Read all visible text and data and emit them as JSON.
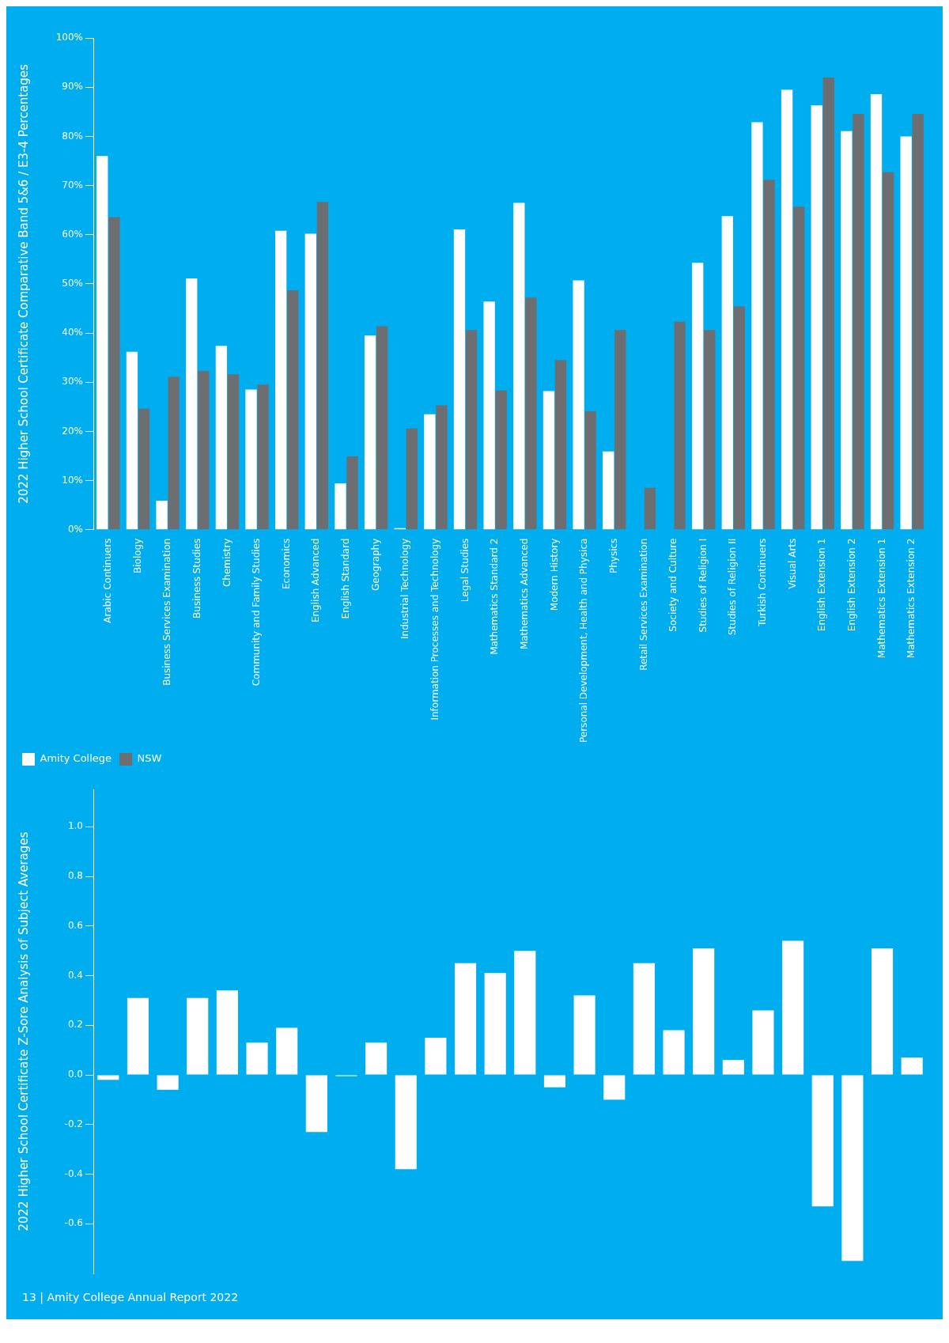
{
  "chart_data": [
    {
      "type": "bar",
      "ylabel": "2022 Higher School Certificate Comparative Band 5&6 / E3-4 Percentages",
      "categories": [
        "Arabic Continuers",
        "Biology",
        "Business Services Examination",
        "Business Studies",
        "Chemistry",
        "Community and Family Studies",
        "Economics",
        "English Advanced",
        "English Standard",
        "Geography",
        "Industrial Technology",
        "Information Processes and Technology",
        "Legal Studies",
        "Mathematics Standard 2",
        "Mathematics Advanced",
        "Modern History",
        "Personal Development, Health and Physica",
        "Physics",
        "Retail Services Examination",
        "Society and Culture",
        "Studies of Religion I",
        "Studies of Religion II",
        "Turkish Continuers",
        "Visual Arts",
        "English Extension 1",
        "English Extension 2",
        "Mathematics Extension 1",
        "Mathematics Extension 2"
      ],
      "series": [
        {
          "name": "Amity College",
          "color": "#ffffff",
          "values": [
            76.0,
            36.2,
            5.9,
            51.1,
            37.4,
            28.5,
            60.8,
            60.2,
            9.4,
            39.5,
            0.3,
            23.5,
            61.1,
            46.4,
            66.5,
            28.2,
            50.7,
            15.9,
            0,
            0,
            54.3,
            63.8,
            82.9,
            89.5,
            86.3,
            81.1,
            88.6,
            80.0
          ]
        },
        {
          "name": "NSW",
          "color": "#6d6e71",
          "values": [
            63.6,
            24.6,
            31.1,
            32.3,
            31.6,
            29.5,
            48.7,
            66.7,
            14.9,
            41.4,
            20.6,
            25.3,
            40.6,
            28.3,
            47.2,
            34.5,
            24.1,
            40.6,
            8.5,
            42.3,
            40.6,
            45.4,
            71.2,
            65.7,
            92.0,
            84.6,
            72.7,
            84.6
          ]
        }
      ],
      "ylim": [
        0,
        100
      ],
      "yticks": [
        {
          "value": 0,
          "label": "0%"
        },
        {
          "value": 10,
          "label": "10%"
        },
        {
          "value": 20,
          "label": "20%"
        },
        {
          "value": 30,
          "label": "30%"
        },
        {
          "value": 40,
          "label": "40%"
        },
        {
          "value": 50,
          "label": "50%"
        },
        {
          "value": 60,
          "label": "60%"
        },
        {
          "value": 70,
          "label": "70%"
        },
        {
          "value": 80,
          "label": "80%"
        },
        {
          "value": 90,
          "label": "90%"
        },
        {
          "value": 100,
          "label": "100%"
        }
      ],
      "legend": "bottom left"
    },
    {
      "type": "bar",
      "ylabel": "2022 Higher School Certificate Z-Sore Analysis of Subject Averages",
      "categories": [
        null,
        null,
        null,
        null,
        null,
        null,
        null,
        null,
        null,
        null,
        null,
        null,
        null,
        null,
        null,
        null,
        null,
        null,
        null,
        null,
        null,
        null,
        null,
        null,
        null,
        null,
        null,
        null
      ],
      "values": [
        -0.02,
        0.31,
        -0.06,
        0.31,
        0.34,
        0.13,
        0.19,
        -0.23,
        -0.005,
        0.13,
        -0.38,
        0.15,
        0.45,
        0.41,
        0.5,
        -0.05,
        0.32,
        -0.1,
        0.45,
        0.18,
        0.51,
        0.06,
        0.26,
        0.54,
        -0.53,
        -0.75,
        0.51,
        0.07
      ],
      "color": "#ffffff",
      "ylim": [
        -0.8,
        1.15
      ],
      "yticks": [
        {
          "value": -0.6,
          "label": "-0.6"
        },
        {
          "value": -0.4,
          "label": "-0.4"
        },
        {
          "value": -0.2,
          "label": "-0.2"
        },
        {
          "value": 0,
          "label": "0.0"
        },
        {
          "value": 0.2,
          "label": "0.2"
        },
        {
          "value": 0.4,
          "label": "0.4"
        },
        {
          "value": 0.6,
          "label": "0.6"
        },
        {
          "value": 0.8,
          "label": "0.8"
        },
        {
          "value": 1,
          "label": "1.0"
        }
      ],
      "tick_labels": "y",
      "annotations": [
        "13 | Amity College Annual Report 2022"
      ]
    }
  ]
}
